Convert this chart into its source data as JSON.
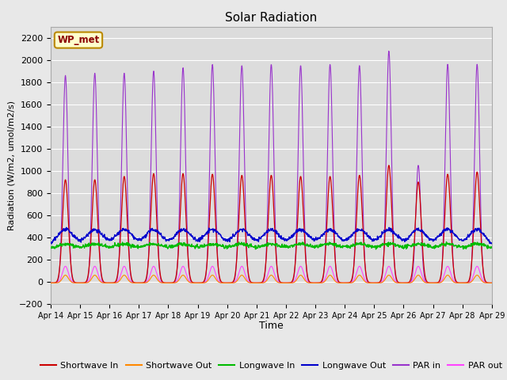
{
  "title": "Solar Radiation",
  "xlabel": "Time",
  "ylabel": "Radiation (W/m2, umol/m2/s)",
  "ylim": [
    -200,
    2300
  ],
  "yticks": [
    -200,
    0,
    200,
    400,
    600,
    800,
    1000,
    1200,
    1400,
    1600,
    1800,
    2000,
    2200
  ],
  "date_start": 14,
  "date_end": 29,
  "num_days": 15,
  "station_label": "WP_met",
  "fig_bg_color": "#e8e8e8",
  "plot_bg_color": "#dcdcdc",
  "series": {
    "shortwave_in": {
      "color": "#cc0000",
      "label": "Shortwave In"
    },
    "shortwave_out": {
      "color": "#ff8800",
      "label": "Shortwave Out"
    },
    "longwave_in": {
      "color": "#00bb00",
      "label": "Longwave In"
    },
    "longwave_out": {
      "color": "#0000cc",
      "label": "Longwave Out"
    },
    "par_in": {
      "color": "#9933cc",
      "label": "PAR in"
    },
    "par_out": {
      "color": "#ff44ff",
      "label": "PAR out"
    }
  },
  "sw_in_peaks": [
    920,
    920,
    950,
    975,
    975,
    970,
    960,
    960,
    950,
    950,
    960,
    1050,
    900,
    970,
    990
  ],
  "par_in_peaks": [
    1860,
    1880,
    1880,
    1900,
    1930,
    1960,
    1950,
    1960,
    1950,
    1960,
    1950,
    2080,
    1050,
    1960,
    1960
  ]
}
